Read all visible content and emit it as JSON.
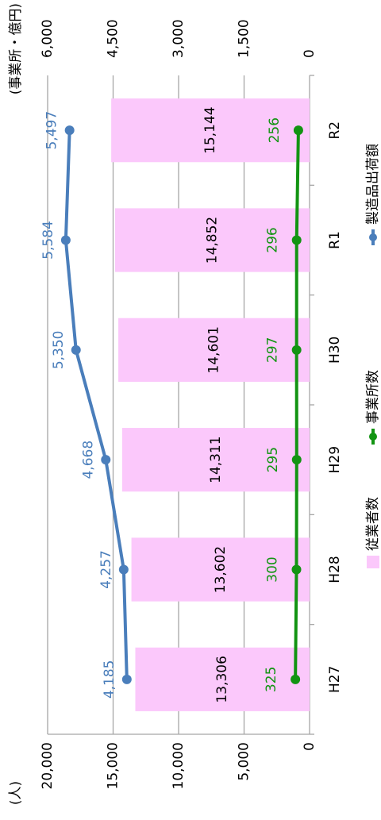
{
  "chart_data": {
    "type": "bar-line",
    "y_label": "(人)",
    "y2_label": "(事業所・億円)",
    "categories": [
      "H27",
      "H28",
      "H29",
      "H30",
      "R1",
      "R2"
    ],
    "ylim": [
      0,
      20000
    ],
    "yticks": [
      0,
      {
        "value": 5000,
        "label": "5,000"
      },
      {
        "value": 10000,
        "label": "10,000"
      },
      {
        "value": 15000,
        "label": "15,000"
      },
      {
        "value": 20000,
        "label": "20,000"
      }
    ],
    "y2lim": [
      0,
      6000
    ],
    "y2ticks": [
      0,
      {
        "value": 1500,
        "label": "1,500"
      },
      {
        "value": 3000,
        "label": "3,000"
      },
      {
        "value": 4500,
        "label": "4,500"
      },
      {
        "value": 6000,
        "label": "6,000"
      }
    ],
    "grid": true,
    "legend": "bottom",
    "series": [
      {
        "name": "従業者数",
        "type": "bar",
        "color": "#fbc8fb",
        "label_color": "#000000",
        "values": [
          13306,
          13602,
          14311,
          14601,
          14852,
          15144
        ],
        "value_labels": [
          "13,306",
          "13,602",
          "14,311",
          "14,601",
          "14,852",
          "15,144"
        ]
      },
      {
        "name": "事業所数",
        "type": "line",
        "axis": "y2",
        "color": "#129412",
        "values": [
          325,
          300,
          295,
          297,
          296,
          256
        ],
        "value_labels": [
          "325",
          "300",
          "295",
          "297",
          "296",
          "256"
        ]
      },
      {
        "name": "製造品出荷額",
        "type": "line",
        "axis": "y2",
        "color": "#4a7ebb",
        "values": [
          4185,
          4257,
          4668,
          5350,
          5584,
          5497
        ],
        "value_labels": [
          "4,185",
          "4,257",
          "4,668",
          "5,350",
          "5,584",
          "5,497"
        ]
      }
    ]
  }
}
